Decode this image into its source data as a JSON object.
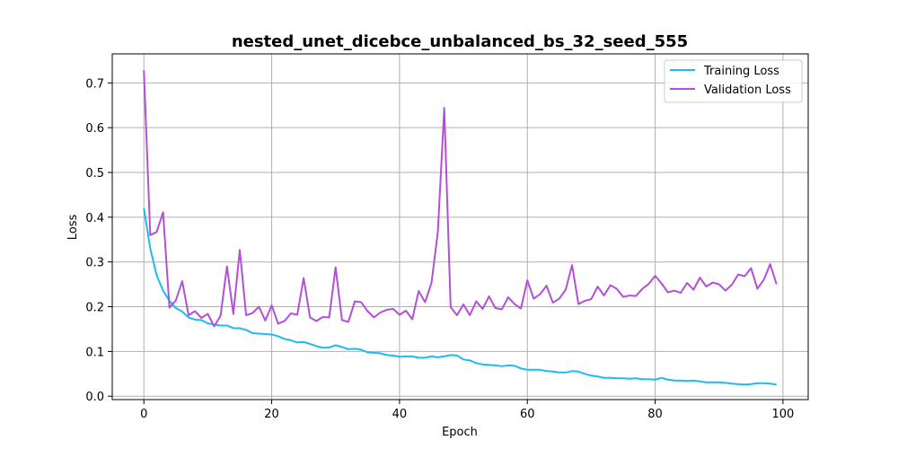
{
  "chart_data": {
    "type": "line",
    "title": "nested_unet_dicebce_unbalanced_bs_32_seed_555",
    "xlabel": "Epoch",
    "ylabel": "Loss",
    "xlim": [
      -4.95,
      103.95
    ],
    "ylim": [
      -0.0076,
      0.7649
    ],
    "xticks": [
      0,
      20,
      40,
      60,
      80,
      100
    ],
    "yticks": [
      0.0,
      0.1,
      0.2,
      0.3,
      0.4,
      0.5,
      0.6,
      0.7
    ],
    "xtick_labels": [
      "0",
      "20",
      "40",
      "60",
      "80",
      "100"
    ],
    "ytick_labels": [
      "0.0",
      "0.1",
      "0.2",
      "0.3",
      "0.4",
      "0.5",
      "0.6",
      "0.7"
    ],
    "grid": true,
    "legend_position": "top-right",
    "series": [
      {
        "name": "Training Loss",
        "color": "#1ebbf0",
        "values": [
          0.42,
          0.33,
          0.27,
          0.236,
          0.213,
          0.197,
          0.189,
          0.176,
          0.171,
          0.17,
          0.163,
          0.16,
          0.158,
          0.158,
          0.152,
          0.152,
          0.148,
          0.141,
          0.14,
          0.139,
          0.138,
          0.134,
          0.128,
          0.125,
          0.12,
          0.121,
          0.117,
          0.112,
          0.108,
          0.109,
          0.114,
          0.11,
          0.105,
          0.106,
          0.104,
          0.098,
          0.097,
          0.096,
          0.092,
          0.091,
          0.088,
          0.089,
          0.089,
          0.086,
          0.086,
          0.089,
          0.087,
          0.089,
          0.092,
          0.091,
          0.082,
          0.08,
          0.074,
          0.071,
          0.07,
          0.069,
          0.067,
          0.069,
          0.068,
          0.062,
          0.059,
          0.059,
          0.059,
          0.056,
          0.055,
          0.053,
          0.053,
          0.056,
          0.055,
          0.05,
          0.046,
          0.044,
          0.041,
          0.041,
          0.04,
          0.04,
          0.039,
          0.04,
          0.038,
          0.038,
          0.037,
          0.041,
          0.037,
          0.035,
          0.035,
          0.034,
          0.035,
          0.033,
          0.031,
          0.031,
          0.031,
          0.03,
          0.028,
          0.027,
          0.026,
          0.027,
          0.029,
          0.029,
          0.028,
          0.026
        ]
      },
      {
        "name": "Validation Loss",
        "color": "#b44fd8",
        "values": [
          0.728,
          0.36,
          0.367,
          0.411,
          0.198,
          0.214,
          0.257,
          0.181,
          0.19,
          0.175,
          0.184,
          0.156,
          0.18,
          0.29,
          0.184,
          0.327,
          0.181,
          0.186,
          0.2,
          0.169,
          0.203,
          0.162,
          0.168,
          0.185,
          0.182,
          0.264,
          0.176,
          0.168,
          0.177,
          0.176,
          0.288,
          0.17,
          0.166,
          0.212,
          0.21,
          0.19,
          0.176,
          0.187,
          0.193,
          0.195,
          0.182,
          0.191,
          0.172,
          0.235,
          0.21,
          0.253,
          0.367,
          0.644,
          0.199,
          0.181,
          0.205,
          0.181,
          0.212,
          0.195,
          0.223,
          0.197,
          0.194,
          0.221,
          0.206,
          0.196,
          0.259,
          0.218,
          0.228,
          0.247,
          0.209,
          0.218,
          0.238,
          0.293,
          0.206,
          0.213,
          0.217,
          0.245,
          0.225,
          0.248,
          0.24,
          0.222,
          0.225,
          0.224,
          0.24,
          0.251,
          0.269,
          0.252,
          0.232,
          0.236,
          0.231,
          0.253,
          0.238,
          0.265,
          0.245,
          0.254,
          0.25,
          0.236,
          0.249,
          0.272,
          0.268,
          0.286,
          0.24,
          0.26,
          0.295,
          0.25
        ]
      }
    ]
  }
}
